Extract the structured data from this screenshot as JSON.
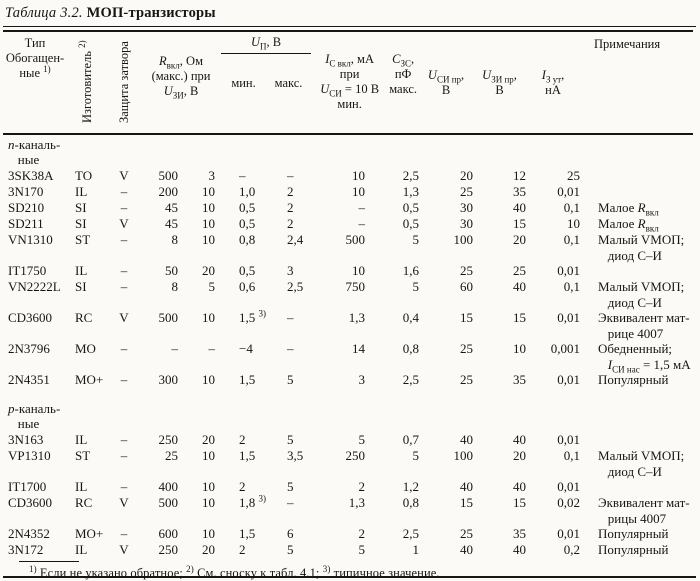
{
  "colors": {
    "ink": "#161616",
    "paper": "#fbfaf6"
  },
  "title": {
    "series_label": "Таблица 3.2.",
    "name": "МОП-транзисторы"
  },
  "table": {
    "column_keys": [
      "type",
      "manufacturer",
      "gate_protection",
      "r_on",
      "u_zi",
      "u_p_min",
      "u_p_max",
      "i_on",
      "c_zs",
      "u_si_br",
      "u_zi_br",
      "i_leak",
      "notes"
    ],
    "headers": {
      "type": "Тип\nОбогащен-\nные ^1)^",
      "manufacturer": "Изготовитель ^2)^",
      "gate_protection": "Защита затвора",
      "r_on": "*R*~вкл~, Ом\n(макс.) при\n*U*~ЗИ~, В",
      "u_p": "*U*~П~, В",
      "u_p_min": "мин.",
      "u_p_max": "макс.",
      "i_on": "*I*~С вкл~, мА\nпри\n*U*~СИ~ = 10 В\nмин.",
      "c_zs": "*С*~ЗС~,\nпФ\nмакс.",
      "u_si_br": "*U*~СИ пр~,\nВ",
      "u_zi_br": "*U*~ЗИ пр~,\nВ",
      "i_leak": "*I*~З ут~,\nнА",
      "notes": "Примечания"
    },
    "groups": [
      {
        "label": "*n*-каналь-\n   ные",
        "rows": [
          [
            "3SK38A",
            "TO",
            "V",
            "500",
            "3",
            "–",
            "–",
            "10",
            "2,5",
            "20",
            "12",
            "25",
            ""
          ],
          [
            "3N170",
            "IL",
            "–",
            "200",
            "10",
            "1,0",
            "2",
            "10",
            "1,3",
            "25",
            "35",
            "0,01",
            ""
          ],
          [
            "SD210",
            "SI",
            "–",
            "45",
            "10",
            "0,5",
            "2",
            "–",
            "0,5",
            "30",
            "40",
            "0,1",
            "Малое *R*~вкл~"
          ],
          [
            "SD211",
            "SI",
            "V",
            "45",
            "10",
            "0,5",
            "2",
            "–",
            "0,5",
            "30",
            "15",
            "10",
            "Малое *R*~вкл~"
          ],
          [
            "VN1310",
            "ST",
            "–",
            "8",
            "10",
            "0,8",
            "2,4",
            "500",
            "5",
            "100",
            "20",
            "0,1",
            "Малый VМОП;\n   диод С–И"
          ],
          [
            "IT1750",
            "IL",
            "–",
            "50",
            "20",
            "0,5",
            "3",
            "10",
            "1,6",
            "25",
            "25",
            "0,01",
            ""
          ],
          [
            "VN2222L",
            "SI",
            "–",
            "8",
            "5",
            "0,6",
            "2,5",
            "750",
            "5",
            "60",
            "40",
            "0,1",
            "Малый VМОП;\n   диод С–И"
          ],
          [
            "CD3600",
            "RC",
            "V",
            "500",
            "10",
            "1,5 ^3)^",
            "–",
            "1,3",
            "0,4",
            "15",
            "15",
            "0,01",
            "Эквивалент мат-\n   рице 4007"
          ],
          [
            "2N3796",
            "MO",
            "–",
            "–",
            "–",
            "−4",
            "–",
            "14",
            "0,8",
            "25",
            "10",
            "0,001",
            "Обедненный;\n   *I*~СИ нас~ = 1,5 мА"
          ],
          [
            "2N4351",
            "MO+",
            "–",
            "300",
            "10",
            "1,5",
            "5",
            "3",
            "2,5",
            "25",
            "35",
            "0,01",
            "Популярный"
          ]
        ]
      },
      {
        "label": "*p*-каналь-\n   ные",
        "rows": [
          [
            "3N163",
            "IL",
            "–",
            "250",
            "20",
            "2",
            "5",
            "5",
            "0,7",
            "40",
            "40",
            "0,01",
            ""
          ],
          [
            "VP1310",
            "ST",
            "–",
            "25",
            "10",
            "1,5",
            "3,5",
            "250",
            "5",
            "100",
            "20",
            "0,1",
            "Малый VМОП;\n   диод С–И"
          ],
          [
            "IT1700",
            "IL",
            "–",
            "400",
            "10",
            "2",
            "5",
            "2",
            "1,2",
            "40",
            "40",
            "0,01",
            ""
          ],
          [
            "CD3600",
            "RC",
            "V",
            "500",
            "10",
            "1,8 ^3)^",
            "–",
            "1,3",
            "0,8",
            "15",
            "15",
            "0,02",
            "Эквивалент мат-\n   рицы 4007"
          ],
          [
            "2N4352",
            "MO+",
            "–",
            "600",
            "10",
            "1,5",
            "6",
            "2",
            "2,5",
            "25",
            "35",
            "0,01",
            "Популярный"
          ],
          [
            "3N172",
            "IL",
            "V",
            "250",
            "20",
            "2",
            "5",
            "5",
            "1",
            "40",
            "40",
            "0,2",
            "Популярный"
          ]
        ]
      }
    ]
  },
  "footnote": {
    "text": "^1)^ Если не указано обратное; ^2)^ См. сноску к табл. 4.1; ^3)^ типичное значение."
  }
}
